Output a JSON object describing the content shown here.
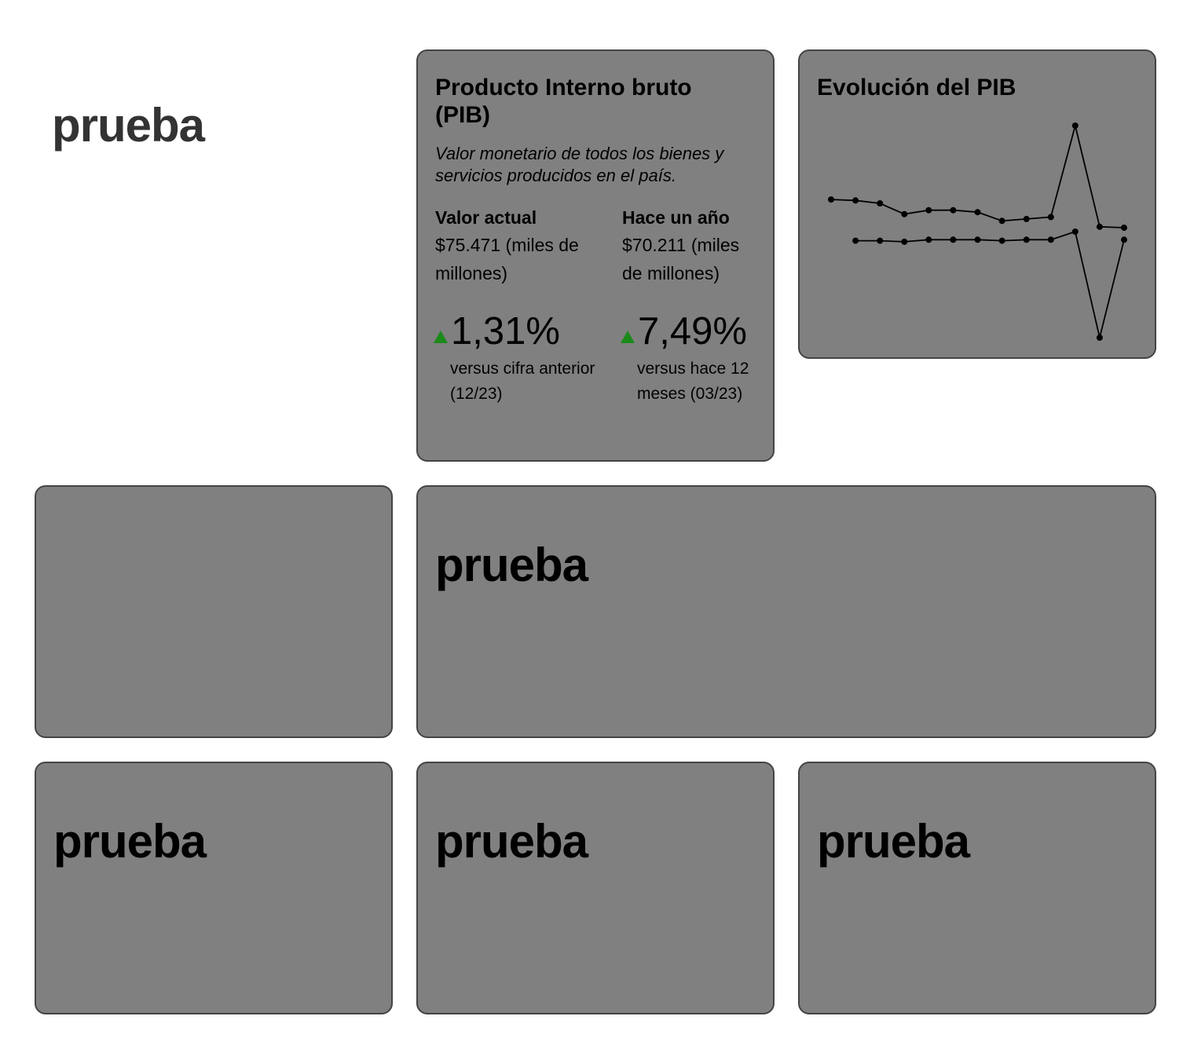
{
  "header": {
    "title": "prueba"
  },
  "pib_card": {
    "title": "Producto Interno bruto (PIB)",
    "description": "Valor monetario de todos los bienes y servicios producidos en el país.",
    "current": {
      "label": "Valor actual",
      "value": "$75.471 (miles de millones)",
      "change": "1,31%",
      "change_note": "versus cifra anterior (12/23)"
    },
    "year_ago": {
      "label": "Hace un año",
      "value": "$70.211 (miles de millones)",
      "change": "7,49%",
      "change_note": "versus hace 12 meses (03/23)"
    },
    "colors": {
      "up_arrow": "#1a8a1a"
    }
  },
  "chart_card": {
    "title": "Evolución del PIB"
  },
  "chart_data": {
    "type": "line",
    "title": "Evolución del PIB",
    "grid": false,
    "legend": "none",
    "series": [
      {
        "values": [
          24,
          23,
          20,
          9,
          13,
          13,
          11,
          2,
          4,
          6,
          100,
          -4,
          -5
        ],
        "ylim": [
          -5,
          100
        ]
      },
      {
        "values": [
          null,
          101,
          101,
          100,
          102,
          102,
          102,
          101,
          102,
          102,
          110,
          5,
          102
        ],
        "ylim": [
          5,
          110
        ]
      }
    ],
    "color": "#000000"
  },
  "panels": {
    "wide_title": "prueba",
    "bottom_left_title": "prueba",
    "bottom_mid_title": "prueba",
    "bottom_right_title": "prueba"
  }
}
